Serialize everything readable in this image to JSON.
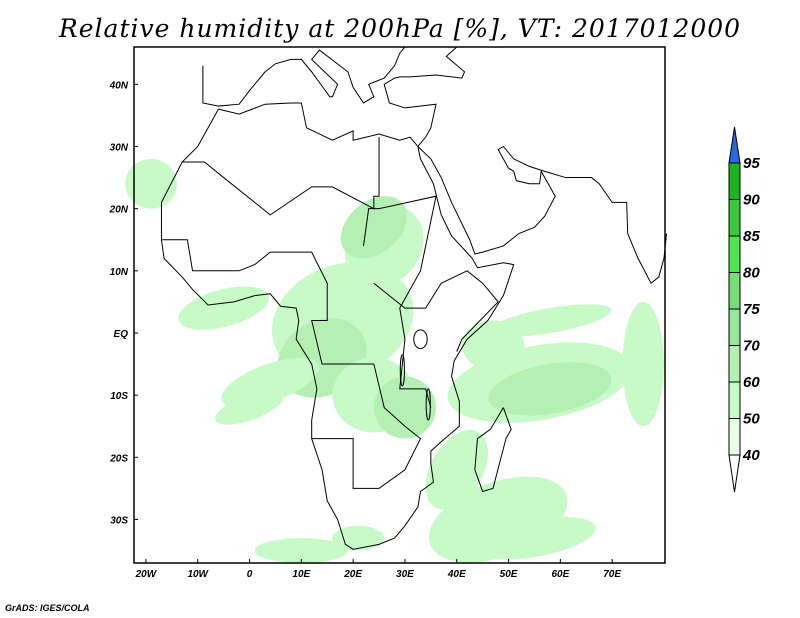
{
  "title": "Relative humidity at 200hPa [%], VT: 2017012000",
  "credit": "GrADS: IGES/COLA",
  "map": {
    "lon_range": [
      -22.3,
      80.2
    ],
    "lat_range": [
      -37,
      46
    ],
    "x_ticks": [
      {
        "lon": -20,
        "label": "20W"
      },
      {
        "lon": -10,
        "label": "10W"
      },
      {
        "lon": 0,
        "label": "0"
      },
      {
        "lon": 10,
        "label": "10E"
      },
      {
        "lon": 20,
        "label": "20E"
      },
      {
        "lon": 30,
        "label": "30E"
      },
      {
        "lon": 40,
        "label": "40E"
      },
      {
        "lon": 50,
        "label": "50E"
      },
      {
        "lon": 60,
        "label": "60E"
      },
      {
        "lon": 70,
        "label": "70E"
      }
    ],
    "y_ticks": [
      {
        "lat": 40,
        "label": "40N"
      },
      {
        "lat": 30,
        "label": "30N"
      },
      {
        "lat": 20,
        "label": "20N"
      },
      {
        "lat": 10,
        "label": "10N"
      },
      {
        "lat": 0,
        "label": "EQ"
      },
      {
        "lat": -10,
        "label": "10S"
      },
      {
        "lat": -20,
        "label": "20S"
      },
      {
        "lat": -30,
        "label": "30S"
      }
    ]
  },
  "colorbar": {
    "levels": [
      "40",
      "50",
      "60",
      "70",
      "75",
      "80",
      "85",
      "90",
      "95"
    ],
    "colors": [
      "#e6ffe6",
      "#c8fac8",
      "#b4f0b4",
      "#96e696",
      "#78dc78",
      "#50e650",
      "#3cc83c",
      "#1eb41e"
    ],
    "above_color": "#2a6ae0",
    "below_color": "#ffffff"
  }
}
